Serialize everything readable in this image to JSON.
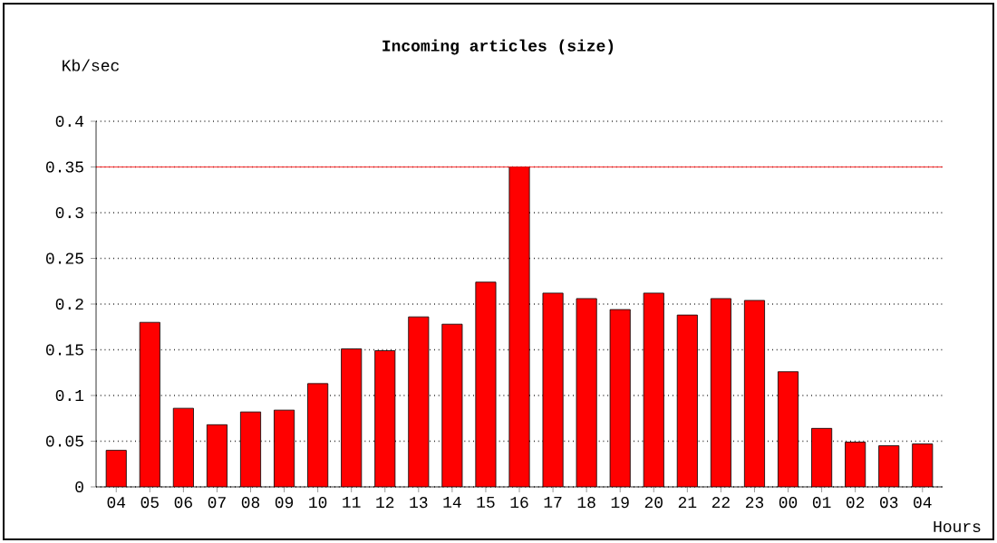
{
  "chart_data": {
    "type": "bar",
    "title": "Incoming articles (size)",
    "ylabel": "Kb/sec",
    "xlabel": "Hours",
    "categories": [
      "04",
      "05",
      "06",
      "07",
      "08",
      "09",
      "10",
      "11",
      "12",
      "13",
      "14",
      "15",
      "16",
      "17",
      "18",
      "19",
      "20",
      "21",
      "22",
      "23",
      "00",
      "01",
      "02",
      "03",
      "04"
    ],
    "values": [
      0.04,
      0.18,
      0.086,
      0.068,
      0.082,
      0.084,
      0.113,
      0.151,
      0.149,
      0.186,
      0.178,
      0.224,
      0.35,
      0.212,
      0.206,
      0.194,
      0.212,
      0.188,
      0.206,
      0.204,
      0.126,
      0.064,
      0.049,
      0.045,
      0.047
    ],
    "color": "#ff0000",
    "ylim": [
      0,
      0.4
    ],
    "yticks": [
      0,
      0.05,
      0.1,
      0.15,
      0.2,
      0.25,
      0.3,
      0.35,
      0.4
    ],
    "grid": "y",
    "ref_lines": [
      {
        "axis": "y",
        "value": 0.35,
        "color": "#ff0000",
        "line_style": "solid"
      }
    ]
  }
}
